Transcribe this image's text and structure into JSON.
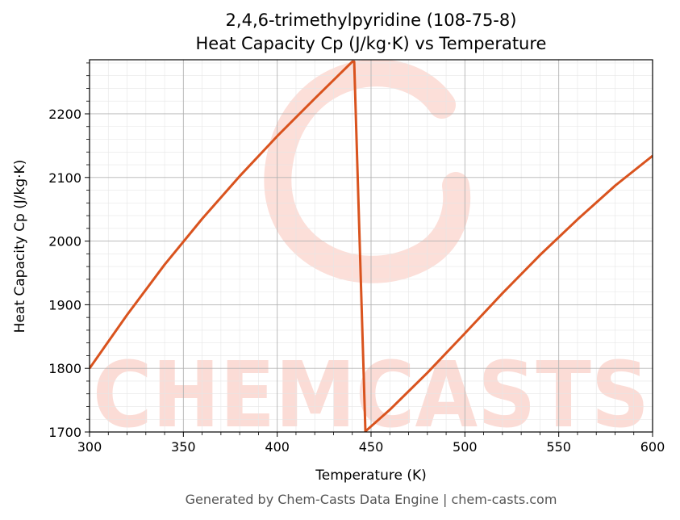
{
  "watermark": {
    "text": "CHEMCASTS",
    "color": "#fbd9d2"
  },
  "footer": "Generated by Chem-Casts Data Engine | chem-casts.com",
  "chart_data": {
    "type": "line",
    "title_line1": "2,4,6-trimethylpyridine (108-75-8)",
    "title_line2": "Heat Capacity Cp (J/kg·K) vs Temperature",
    "xlabel": "Temperature (K)",
    "ylabel": "Heat Capacity Cp (J/kg·K)",
    "xlim": [
      300,
      600
    ],
    "ylim": [
      1700,
      2285
    ],
    "xticks": [
      300,
      350,
      400,
      450,
      500,
      550,
      600
    ],
    "yticks": [
      1700,
      1800,
      1900,
      2000,
      2100,
      2200
    ],
    "grid": true,
    "line_color": "#d9531e",
    "series": [
      {
        "x": [
          300,
          320,
          340,
          360,
          380,
          400,
          420,
          440,
          441,
          447,
          460,
          480,
          500,
          520,
          540,
          560,
          580,
          600
        ],
        "y": [
          1800,
          1884,
          1963,
          2035,
          2102,
          2165,
          2224,
          2282,
          2282,
          1701,
          1735,
          1793,
          1855,
          1918,
          1978,
          2034,
          2087,
          2134
        ]
      }
    ]
  }
}
